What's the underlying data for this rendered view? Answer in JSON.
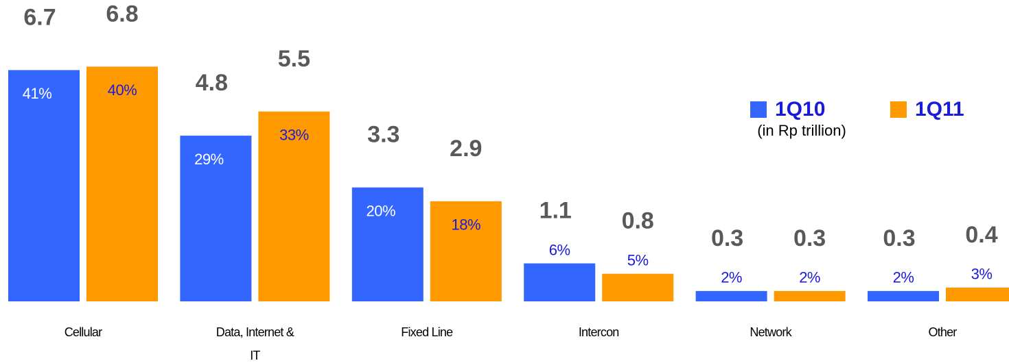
{
  "chart_data": {
    "type": "bar",
    "subtitle": "(in Rp trillion)",
    "categories": [
      "Cellular",
      "Data, Internet & IT",
      "Fixed Line",
      "Intercon",
      "Network",
      "Other"
    ],
    "series": [
      {
        "name": "1Q10",
        "color": "#3366ff",
        "values": [
          6.7,
          4.8,
          3.3,
          1.1,
          0.3,
          0.3
        ],
        "share_labels": [
          "41%",
          "29%",
          "20%",
          "6%",
          "2%",
          "2%"
        ]
      },
      {
        "name": "1Q11",
        "color": "#ff9900",
        "values": [
          6.8,
          5.5,
          2.9,
          0.8,
          0.3,
          0.4
        ],
        "share_labels": [
          "40%",
          "33%",
          "18%",
          "5%",
          "2%",
          "3%"
        ]
      }
    ],
    "legend": "top-right"
  }
}
